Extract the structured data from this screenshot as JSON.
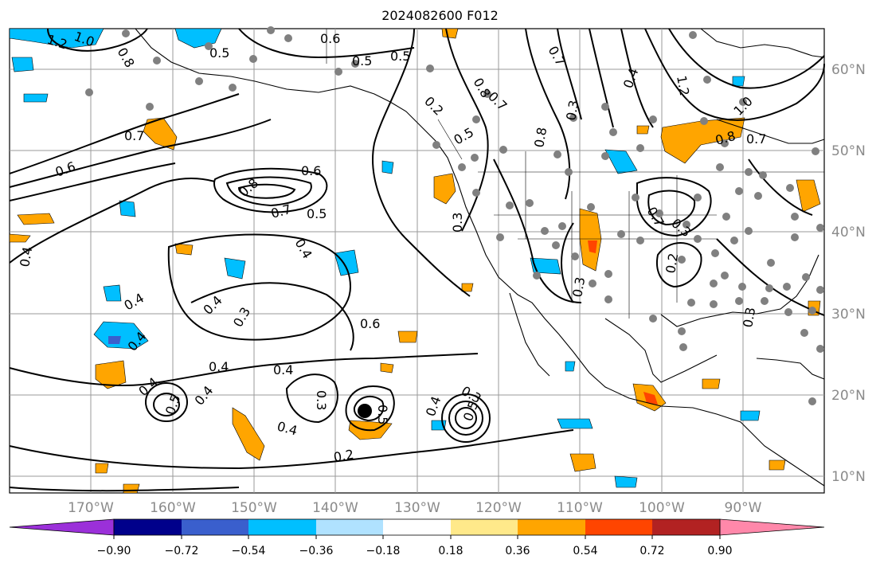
{
  "title": "2024082600 F012",
  "lat_labels": [
    "60°N",
    "50°N",
    "40°N",
    "30°N",
    "20°N",
    "10°N"
  ],
  "lon_labels": [
    "170°W",
    "160°W",
    "150°W",
    "140°W",
    "130°W",
    "120°W",
    "110°W",
    "100°W",
    "90°W"
  ],
  "colorbar": {
    "ticks": [
      "−0.90",
      "−0.72",
      "−0.54",
      "−0.36",
      "−0.18",
      "0.18",
      "0.36",
      "0.54",
      "0.72",
      "0.90"
    ],
    "colors": [
      "#9b30d9",
      "#00008b",
      "#3a5fcd",
      "#00bfff",
      "#b0e2ff",
      "#ffffff",
      "#ffe98a",
      "#ffa500",
      "#ff4500",
      "#b22222",
      "#ff88aa"
    ]
  },
  "contour_labels": [
    "1.2",
    "1.0",
    "0.8",
    "0.6",
    "0.5",
    "0.5",
    "0.5",
    "0.7",
    "0.6",
    "0.8",
    "0.7",
    "0.5",
    "0.4",
    "0.4",
    "0.4",
    "0.4",
    "0.3",
    "0.6",
    "0.4",
    "0.4",
    "0.4",
    "0.3",
    "0.4",
    "0.2",
    "0.5",
    "0.4",
    "0.5",
    "0.3",
    "0.8",
    "0.7",
    "0.5",
    "0.8",
    "0.7",
    "0.3",
    "0.4",
    "1.2",
    "1.0",
    "0.8",
    "0.7",
    "0.3",
    "0.3",
    "0.2",
    "0.3",
    "0.7",
    "0.6",
    "0.4",
    "0.5",
    "0.4",
    "0.2",
    "0.3"
  ],
  "legend_colors": {
    "contour": "#000000",
    "station": "#808080",
    "grid": "#999999",
    "coast": "#000000"
  }
}
